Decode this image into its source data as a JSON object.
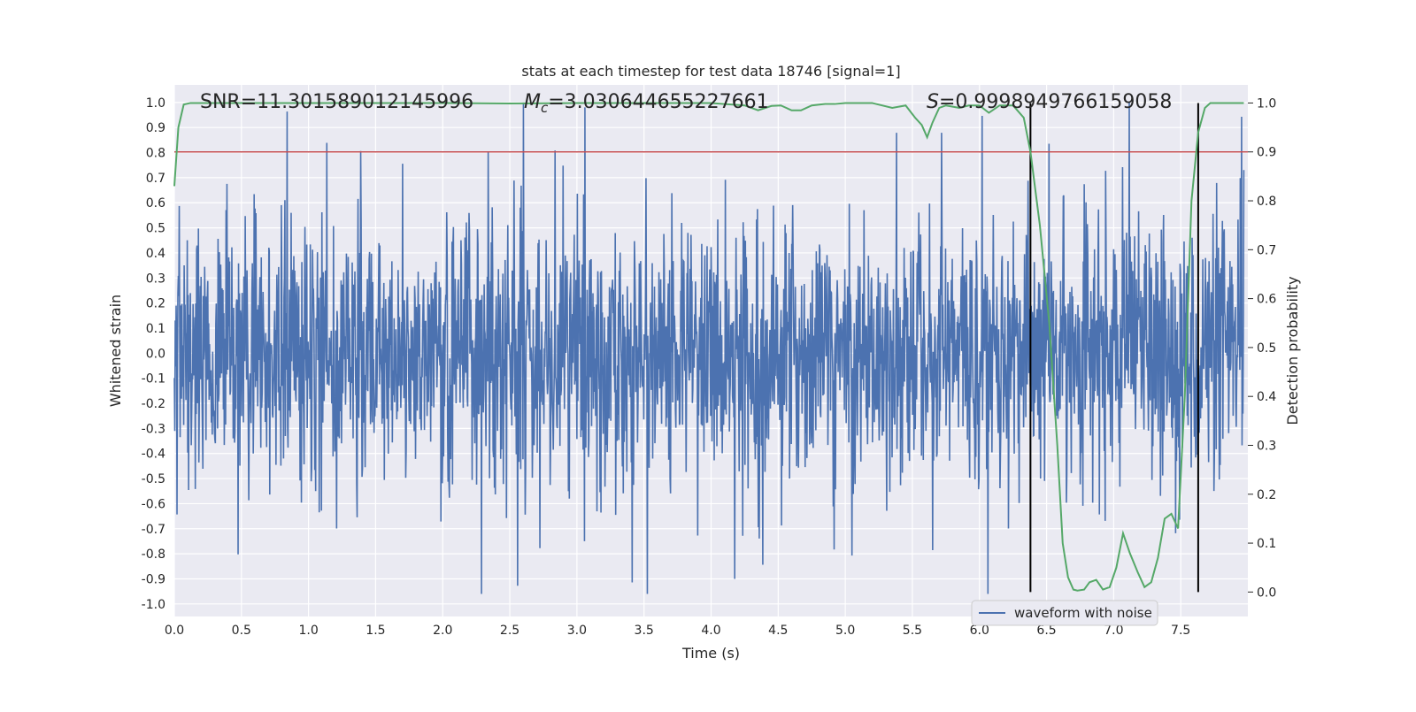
{
  "chart_data": {
    "type": "line",
    "title": "stats at each timestep for test data 18746 [signal=1]",
    "xlabel": "Time (s)",
    "ylabel": "Whitened strain",
    "y2label": "Detection probability",
    "xlim": [
      0.0,
      8.0
    ],
    "ylim": [
      -1.05,
      1.07
    ],
    "y2lim": [
      -0.05,
      1.037
    ],
    "grid": true,
    "x_ticks": [
      "0.0",
      "0.5",
      "1.0",
      "1.5",
      "2.0",
      "2.5",
      "3.0",
      "3.5",
      "4.0",
      "4.5",
      "5.0",
      "5.5",
      "6.0",
      "6.5",
      "7.0",
      "7.5"
    ],
    "x_tick_values": [
      0.0,
      0.5,
      1.0,
      1.5,
      2.0,
      2.5,
      3.0,
      3.5,
      4.0,
      4.5,
      5.0,
      5.5,
      6.0,
      6.5,
      7.0,
      7.5
    ],
    "y_ticks": [
      "1.0",
      "0.9",
      "0.8",
      "0.7",
      "0.6",
      "0.5",
      "0.4",
      "0.3",
      "0.2",
      "0.1",
      "0.0",
      "-0.1",
      "-0.2",
      "-0.3",
      "-0.4",
      "-0.5",
      "-0.6",
      "-0.7",
      "-0.8",
      "-0.9",
      "-1.0"
    ],
    "y_tick_values": [
      1.0,
      0.9,
      0.8,
      0.7,
      0.6,
      0.5,
      0.4,
      0.3,
      0.2,
      0.1,
      0.0,
      -0.1,
      -0.2,
      -0.3,
      -0.4,
      -0.5,
      -0.6,
      -0.7,
      -0.8,
      -0.9,
      -1.0
    ],
    "y2_ticks": [
      "1.0",
      "0.9",
      "0.8",
      "0.7",
      "0.6",
      "0.5",
      "0.4",
      "0.3",
      "0.2",
      "0.1",
      "0.0"
    ],
    "y2_tick_values": [
      1.0,
      0.9,
      0.8,
      0.7,
      0.6,
      0.5,
      0.4,
      0.3,
      0.2,
      0.1,
      0.0
    ],
    "annotations": {
      "snr": "SNR=11.301589012145996",
      "mc_symbol": "M",
      "mc_sub": "c",
      "mc_value": "=3.030644655227661",
      "s_symbol": "S",
      "s_value": "=0.9998949766159058"
    },
    "legend": {
      "entry": "waveform with noise",
      "placement": "lower right"
    },
    "threshold": {
      "value": 0.9,
      "axis": "y2"
    },
    "vertical_lines": [
      6.38,
      7.63
    ],
    "waveform_series": {
      "name": "waveform with noise",
      "samples": 2400,
      "x_start": 0.0,
      "x_end": 7.97,
      "typical_envelope": 0.45,
      "max": 1.0,
      "min": -0.96
    },
    "probability_series": {
      "x": [
        0.0,
        0.03,
        0.07,
        0.12,
        0.2,
        0.5,
        1.0,
        1.5,
        2.0,
        2.5,
        3.0,
        3.5,
        4.0,
        4.25,
        4.35,
        4.45,
        4.52,
        4.6,
        4.67,
        4.75,
        4.85,
        4.92,
        5.0,
        5.2,
        5.35,
        5.45,
        5.52,
        5.57,
        5.61,
        5.65,
        5.7,
        5.75,
        5.85,
        5.92,
        6.0,
        6.07,
        6.15,
        6.25,
        6.33,
        6.38,
        6.45,
        6.52,
        6.58,
        6.62,
        6.66,
        6.7,
        6.73,
        6.78,
        6.82,
        6.87,
        6.92,
        6.97,
        7.02,
        7.07,
        7.12,
        7.18,
        7.23,
        7.28,
        7.33,
        7.38,
        7.43,
        7.48,
        7.53,
        7.58,
        7.63,
        7.68,
        7.72,
        7.8,
        7.97
      ],
      "y": [
        0.83,
        0.95,
        0.997,
        1.0,
        1.0,
        1.0,
        1.0,
        1.0,
        1.0,
        0.999,
        1.0,
        1.0,
        1.0,
        0.995,
        0.985,
        0.994,
        0.995,
        0.985,
        0.985,
        0.995,
        0.998,
        0.998,
        1.0,
        1.0,
        0.99,
        0.995,
        0.97,
        0.955,
        0.93,
        0.96,
        0.99,
        0.995,
        0.99,
        0.995,
        0.995,
        0.98,
        0.995,
        0.995,
        0.97,
        0.9,
        0.75,
        0.55,
        0.3,
        0.1,
        0.03,
        0.005,
        0.003,
        0.005,
        0.02,
        0.025,
        0.005,
        0.01,
        0.05,
        0.12,
        0.08,
        0.04,
        0.01,
        0.02,
        0.07,
        0.15,
        0.16,
        0.13,
        0.4,
        0.8,
        0.94,
        0.99,
        1.0,
        1.0,
        1.0
      ]
    },
    "colors": {
      "waveform": "#4c72b0",
      "probability": "#55a868",
      "threshold": "#c44e52",
      "vline": "#000000",
      "plot_bg": "#eaeaf2",
      "grid": "#ffffff"
    }
  }
}
